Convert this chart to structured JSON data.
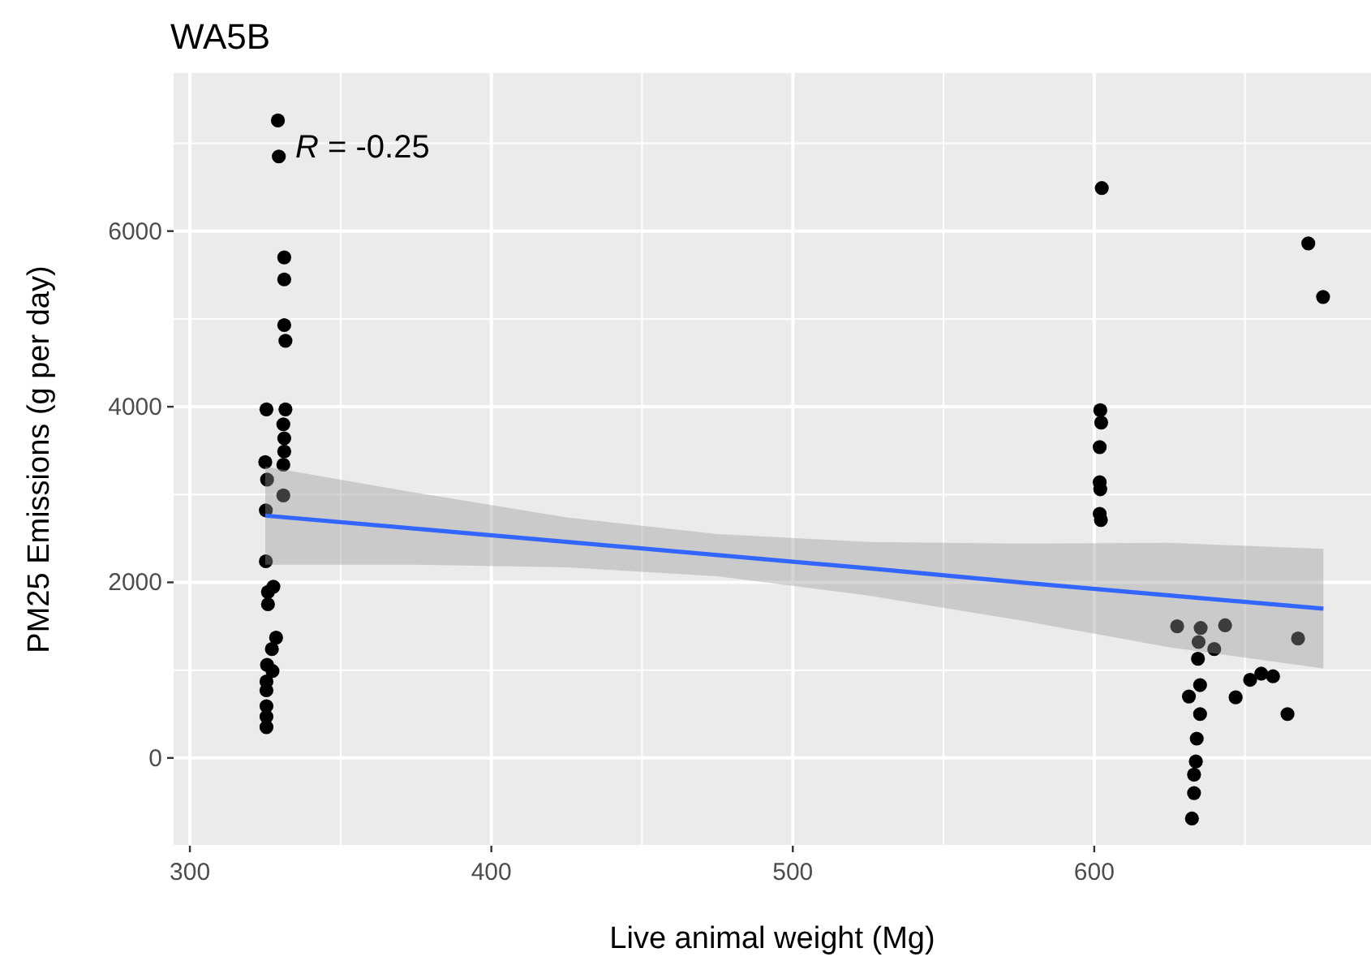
{
  "chart_data": {
    "type": "scatter",
    "title": "WA5B",
    "xlabel": "Live animal weight (Mg)",
    "ylabel": "PM25 Emissions (g per day)",
    "annotations": [
      "R = -0.25"
    ],
    "xlim": [
      294.6,
      691.8
    ],
    "xticks": [
      300,
      400,
      500,
      600
    ],
    "ylim": [
      -1000,
      7800
    ],
    "yticks": [
      0,
      2000,
      4000,
      6000
    ],
    "grid": true,
    "series": [
      {
        "color": "#000000",
        "marker": "circle",
        "x": [
          329.2,
          329.5,
          331.3,
          331.3,
          331.3,
          331.7,
          325.4,
          331.7,
          331,
          331.3,
          331.3,
          331,
          325,
          325.6,
          331,
          325.2,
          325.2,
          327.7,
          325.9,
          325.9,
          328.6,
          327.2,
          325.6,
          327.4,
          325.4,
          325.4,
          325.4,
          325.4,
          325.4,
          602.5,
          602,
          602.3,
          601.8,
          601.8,
          602,
          601.8,
          602.2,
          671,
          675.9,
          627.5,
          635.3,
          634.6,
          643.4,
          639.8,
          667.6,
          634.4,
          635.1,
          631.4,
          646.9,
          651.7,
          655.4,
          659.3,
          664.1,
          635.1,
          634,
          633.7,
          633.1,
          633.1,
          632.4
        ],
        "values": [
          7260,
          6850,
          5700,
          5450,
          4930,
          4750,
          3970,
          3970,
          3800,
          3640,
          3490,
          3340,
          3370,
          3170,
          2990,
          2820,
          2240,
          1950,
          1890,
          1750,
          1370,
          1240,
          1060,
          990,
          870,
          770,
          590,
          470,
          350,
          6490,
          3960,
          3820,
          3540,
          3140,
          3060,
          2780,
          2710,
          5860,
          5250,
          1500,
          1480,
          1320,
          1510,
          1240,
          1360,
          1130,
          830,
          700,
          690,
          890,
          960,
          930,
          500,
          500,
          220,
          -40,
          -190,
          -400,
          -690
        ]
      },
      {
        "type": "line",
        "color": "#3366ff",
        "x": [
          325,
          375,
          425,
          475,
          525,
          575,
          625,
          676
        ],
        "values": [
          2760,
          2610,
          2460,
          2310,
          2160,
          2000,
          1850,
          1700
        ],
        "lower": [
          2200,
          2200,
          2170,
          2070,
          1850,
          1570,
          1260,
          1020
        ],
        "upper": [
          3320,
          3020,
          2740,
          2550,
          2460,
          2440,
          2450,
          2380
        ]
      }
    ]
  }
}
